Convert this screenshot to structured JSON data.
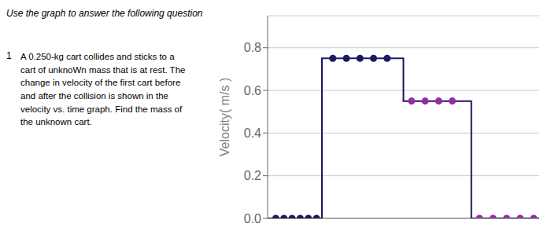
{
  "chart_data": {
    "type": "line",
    "title": "Use the graph to answer the following question",
    "annotations": [
      "1",
      "A 0.250-kg cart collides and sticks to a\ncart of unknoWn mass that is at rest. The\nchange in velocity of the first cart before\nand after the collision is shown in the\nvelocity vs. time graph. Find the mass of\nthe unknown cart."
    ],
    "ylabel": "Velocity( m/s )",
    "xlim": [
      0,
      10
    ],
    "ylim": [
      0.0,
      0.95
    ],
    "yticks": [
      {
        "value": 0.0,
        "label": "0.0"
      },
      0.2,
      0.4,
      0.6,
      0.8
    ],
    "grid": true,
    "tick_labels": "y",
    "series": [
      {
        "type": "line",
        "color": "#1a1a5e",
        "x": [
          0.0,
          2.0,
          2.0,
          5.0,
          5.0,
          7.5,
          7.5,
          10.0
        ],
        "values": [
          0.0,
          0.0,
          0.75,
          0.75,
          0.55,
          0.55,
          0.0,
          0.0
        ]
      },
      {
        "type": "scatter",
        "color": "#1a1a5e",
        "x": [
          0.3,
          0.6,
          0.9,
          1.2,
          1.5,
          1.8,
          2.4,
          2.9,
          3.4,
          3.9,
          4.4
        ],
        "values": [
          0.0,
          0.0,
          0.0,
          0.0,
          0.0,
          0.0,
          0.75,
          0.75,
          0.75,
          0.75,
          0.75
        ]
      },
      {
        "type": "scatter",
        "color": "#9030a0",
        "x": [
          5.3,
          5.8,
          6.3,
          6.8,
          7.8,
          8.3,
          8.8,
          9.3,
          9.8
        ],
        "values": [
          0.55,
          0.55,
          0.55,
          0.55,
          0.0,
          0.0,
          0.0,
          0.0,
          0.0
        ]
      }
    ]
  }
}
